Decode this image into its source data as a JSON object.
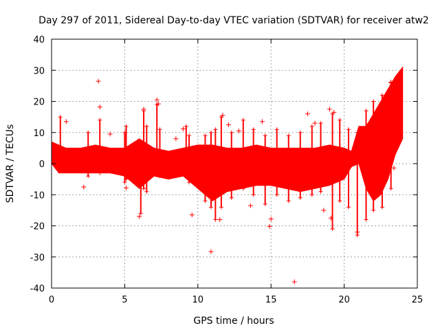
{
  "chart_data": {
    "type": "scatter",
    "title": "Day 297 of 2011, Sidereal Day-to-day VTEC variation (SDTVAR) for receiver atw2",
    "xlabel": "GPS time / hours",
    "ylabel": "SDTVAR / TECUs",
    "xlim": [
      0,
      25
    ],
    "ylim": [
      -40,
      40
    ],
    "xticks": [
      0,
      5,
      10,
      15,
      20,
      25
    ],
    "yticks": [
      -40,
      -30,
      -20,
      -10,
      0,
      10,
      20,
      30,
      40
    ],
    "grid": true,
    "marker": "+",
    "color": "#ff0000",
    "series": [
      {
        "name": "SDTVAR",
        "band": {
          "x": [
            0,
            0.5,
            1,
            2,
            3,
            4,
            5,
            6,
            7,
            8,
            9,
            10,
            11,
            12,
            13,
            14,
            15,
            16,
            17,
            18,
            19,
            20,
            20.5,
            21,
            21.5,
            22,
            22.5,
            23,
            23.5,
            24
          ],
          "upper": [
            7,
            6,
            5,
            5,
            6,
            5,
            5,
            8,
            5,
            4,
            5,
            6,
            6,
            5,
            5,
            6,
            5,
            5,
            5,
            5,
            6,
            5,
            4,
            12,
            12,
            16,
            20,
            24,
            28,
            31
          ],
          "lower": [
            0,
            -3,
            -3,
            -3,
            -3,
            -3,
            -4,
            -8,
            -4,
            -5,
            -4,
            -8,
            -12,
            -9,
            -8,
            -7,
            -7,
            -8,
            -9,
            -8,
            -7,
            -5,
            -1,
            0,
            -8,
            -12,
            -10,
            -5,
            3,
            8
          ]
        },
        "outliers": [
          {
            "x": 3.2,
            "y": 26.5
          },
          {
            "x": 3.3,
            "y": 18.2
          },
          {
            "x": 7.2,
            "y": 20.5
          },
          {
            "x": 7.3,
            "y": 19.2
          },
          {
            "x": 6.3,
            "y": 17.5
          },
          {
            "x": 1.0,
            "y": 13.5
          },
          {
            "x": 2.2,
            "y": -7.5
          },
          {
            "x": 5.1,
            "y": -7.8
          },
          {
            "x": 6.0,
            "y": -17.0
          },
          {
            "x": 9.6,
            "y": -16.5
          },
          {
            "x": 10.9,
            "y": -28.3
          },
          {
            "x": 11.5,
            "y": -18.0
          },
          {
            "x": 11.7,
            "y": 15.5
          },
          {
            "x": 14.4,
            "y": 13.5
          },
          {
            "x": 14.9,
            "y": -20.2
          },
          {
            "x": 15.0,
            "y": -17.8
          },
          {
            "x": 16.6,
            "y": -38.0
          },
          {
            "x": 17.5,
            "y": 16.0
          },
          {
            "x": 18.0,
            "y": 13.0
          },
          {
            "x": 19.0,
            "y": 17.5
          },
          {
            "x": 19.3,
            "y": 16.5
          },
          {
            "x": 19.1,
            "y": -17.5
          },
          {
            "x": 20.9,
            "y": -22.0
          },
          {
            "x": 23.2,
            "y": 26.2
          },
          {
            "x": 23.4,
            "y": -1.4
          },
          {
            "x": 12.8,
            "y": 10.5
          },
          {
            "x": 9.0,
            "y": 11.2
          },
          {
            "x": 4.0,
            "y": 9.5
          },
          {
            "x": 8.5,
            "y": 8.0
          },
          {
            "x": 13.6,
            "y": -13.5
          },
          {
            "x": 12.1,
            "y": 12.5
          },
          {
            "x": 18.6,
            "y": -15.0
          }
        ],
        "spikes": [
          {
            "x": 0.6,
            "low": -2,
            "high": 15
          },
          {
            "x": 2.5,
            "low": -4,
            "high": 10
          },
          {
            "x": 3.3,
            "low": -3,
            "high": 14
          },
          {
            "x": 5.0,
            "low": -6,
            "high": 10
          },
          {
            "x": 5.1,
            "low": -5,
            "high": 12
          },
          {
            "x": 6.1,
            "low": -16,
            "high": 6
          },
          {
            "x": 6.3,
            "low": -8,
            "high": 17
          },
          {
            "x": 6.5,
            "low": -9,
            "high": 12
          },
          {
            "x": 7.2,
            "low": -3,
            "high": 19
          },
          {
            "x": 7.4,
            "low": -4,
            "high": 11
          },
          {
            "x": 9.2,
            "low": -3,
            "high": 12
          },
          {
            "x": 9.4,
            "low": -6,
            "high": 9
          },
          {
            "x": 10.5,
            "low": -12,
            "high": 9
          },
          {
            "x": 10.9,
            "low": -14,
            "high": 10
          },
          {
            "x": 11.2,
            "low": -18,
            "high": 11
          },
          {
            "x": 11.6,
            "low": -14,
            "high": 15
          },
          {
            "x": 12.3,
            "low": -11,
            "high": 10
          },
          {
            "x": 13.1,
            "low": -8,
            "high": 14
          },
          {
            "x": 13.8,
            "low": -10,
            "high": 11
          },
          {
            "x": 14.6,
            "low": -13,
            "high": 9
          },
          {
            "x": 15.4,
            "low": -10,
            "high": 11
          },
          {
            "x": 16.2,
            "low": -12,
            "high": 9
          },
          {
            "x": 17.0,
            "low": -11,
            "high": 10
          },
          {
            "x": 17.8,
            "low": -10,
            "high": 12
          },
          {
            "x": 18.4,
            "low": -9,
            "high": 13
          },
          {
            "x": 19.2,
            "low": -21,
            "high": 16
          },
          {
            "x": 19.7,
            "low": -12,
            "high": 14
          },
          {
            "x": 20.3,
            "low": -14,
            "high": 11
          },
          {
            "x": 20.9,
            "low": -23,
            "high": 10
          },
          {
            "x": 21.5,
            "low": -18,
            "high": 17
          },
          {
            "x": 22.0,
            "low": -15,
            "high": 20
          },
          {
            "x": 22.6,
            "low": -14,
            "high": 22
          },
          {
            "x": 23.2,
            "low": -8,
            "high": 26
          }
        ]
      }
    ]
  }
}
